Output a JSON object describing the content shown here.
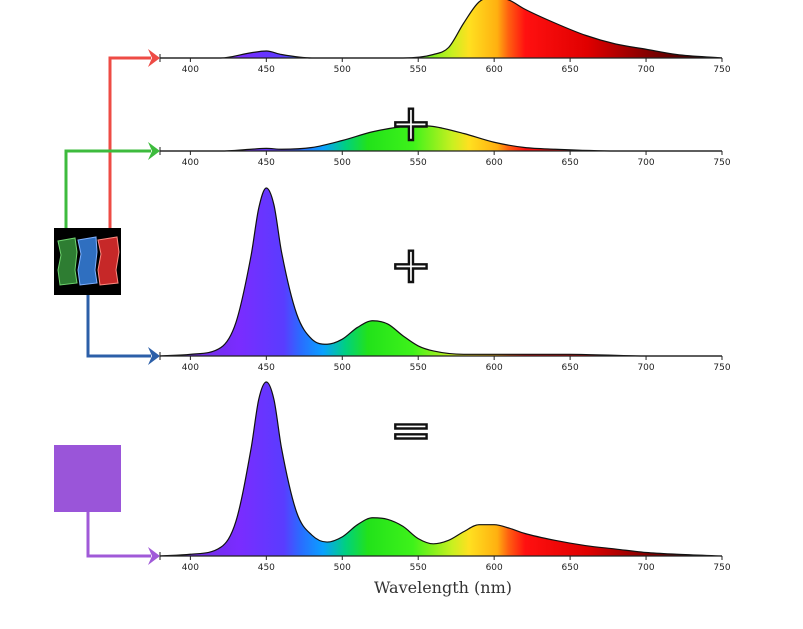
{
  "figure": {
    "xlabel": "Wavelength (nm)",
    "operators": [
      "+",
      "+",
      "="
    ],
    "pixel_colors": {
      "green": "#2e7d32",
      "blue": "#2f6fc0",
      "red": "#c62828"
    },
    "arrow_colors": {
      "red": "#ee4b45",
      "green": "#3dbb3d",
      "blue": "#2c5fa8",
      "purple": "#a05ad8"
    },
    "result_swatch_color": "#9a55d9"
  },
  "chart_data": [
    {
      "type": "area",
      "channel": "red",
      "x": [
        380,
        400,
        420,
        440,
        450,
        460,
        480,
        500,
        520,
        540,
        560,
        570,
        580,
        590,
        600,
        610,
        620,
        640,
        660,
        680,
        700,
        720,
        750
      ],
      "y": [
        0,
        0,
        0,
        0.03,
        0.04,
        0.02,
        0,
        0,
        0,
        0,
        0.02,
        0.06,
        0.2,
        0.32,
        0.35,
        0.33,
        0.28,
        0.2,
        0.13,
        0.08,
        0.05,
        0.02,
        0
      ],
      "xlim": [
        380,
        750
      ],
      "xticks": [
        400,
        450,
        500,
        550,
        600,
        650,
        700,
        750
      ]
    },
    {
      "type": "area",
      "channel": "green",
      "x": [
        380,
        400,
        420,
        440,
        450,
        460,
        480,
        500,
        520,
        540,
        550,
        560,
        580,
        600,
        620,
        640,
        680,
        720,
        750
      ],
      "y": [
        0,
        0,
        0,
        0.01,
        0.015,
        0.01,
        0.02,
        0.06,
        0.11,
        0.14,
        0.145,
        0.14,
        0.1,
        0.05,
        0.02,
        0.01,
        0,
        0,
        0
      ],
      "xlim": [
        380,
        750
      ],
      "xticks": [
        400,
        450,
        500,
        550,
        600,
        650,
        700,
        750
      ]
    },
    {
      "type": "area",
      "channel": "blue",
      "x": [
        380,
        400,
        420,
        430,
        440,
        445,
        450,
        455,
        460,
        470,
        480,
        490,
        500,
        510,
        520,
        530,
        540,
        550,
        560,
        580,
        600,
        650,
        700,
        750
      ],
      "y": [
        0,
        0.01,
        0.05,
        0.2,
        0.6,
        0.88,
        1.0,
        0.9,
        0.62,
        0.25,
        0.1,
        0.07,
        0.1,
        0.17,
        0.21,
        0.19,
        0.12,
        0.06,
        0.03,
        0.01,
        0.01,
        0.01,
        0,
        0
      ],
      "xlim": [
        380,
        750
      ],
      "xticks": [
        400,
        450,
        500,
        550,
        600,
        650,
        700,
        750
      ]
    },
    {
      "type": "area",
      "channel": "sum",
      "x": [
        380,
        400,
        420,
        430,
        440,
        445,
        450,
        455,
        460,
        470,
        480,
        490,
        500,
        510,
        520,
        530,
        540,
        550,
        560,
        570,
        580,
        590,
        600,
        610,
        620,
        640,
        660,
        680,
        700,
        720,
        750
      ],
      "y": [
        0,
        0.01,
        0.05,
        0.2,
        0.62,
        0.9,
        1.0,
        0.9,
        0.62,
        0.25,
        0.12,
        0.08,
        0.11,
        0.18,
        0.22,
        0.21,
        0.17,
        0.1,
        0.07,
        0.09,
        0.14,
        0.18,
        0.18,
        0.16,
        0.13,
        0.09,
        0.06,
        0.04,
        0.02,
        0.01,
        0
      ],
      "xlim": [
        380,
        750
      ],
      "xticks": [
        400,
        450,
        500,
        550,
        600,
        650,
        700,
        750
      ],
      "xlabel": "Wavelength (nm)"
    }
  ]
}
